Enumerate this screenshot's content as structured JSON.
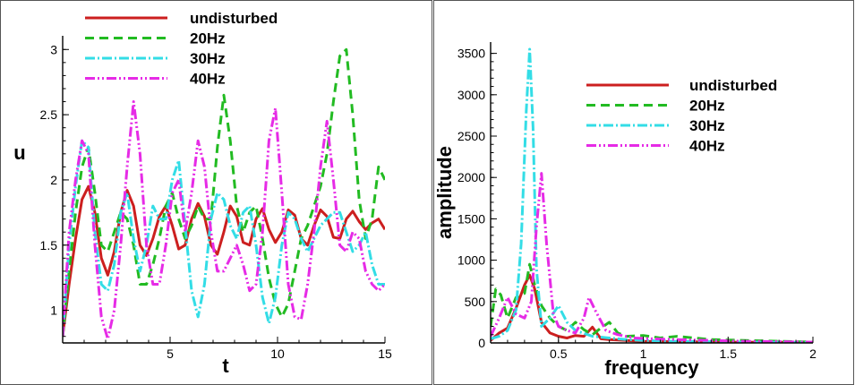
{
  "chart_data": [
    {
      "type": "line",
      "xlabel": "t",
      "ylabel": "u",
      "xlim": [
        0,
        15
      ],
      "ylim": [
        0.75,
        3.05
      ],
      "xticks": [
        5,
        10,
        15
      ],
      "yticks": [
        1,
        1.5,
        2,
        2.5,
        3
      ],
      "xtick_labels": [
        "5",
        "10",
        "15"
      ],
      "ytick_labels": [
        "1",
        "1.5",
        "2",
        "2.5",
        "3"
      ],
      "grid": false,
      "legend_position": "top-left",
      "series": [
        {
          "name": "undisturbed",
          "color": "#cc1f1f",
          "dash": "solid",
          "x": [
            0,
            0.3,
            0.6,
            0.9,
            1.2,
            1.5,
            1.8,
            2.1,
            2.4,
            2.7,
            3.0,
            3.3,
            3.6,
            3.9,
            4.2,
            4.5,
            4.8,
            5.1,
            5.4,
            5.7,
            6.0,
            6.3,
            6.6,
            6.9,
            7.2,
            7.5,
            7.8,
            8.1,
            8.4,
            8.7,
            9.0,
            9.3,
            9.6,
            9.9,
            10.2,
            10.5,
            10.8,
            11.1,
            11.4,
            11.7,
            12.0,
            12.3,
            12.6,
            12.9,
            13.2,
            13.5,
            13.8,
            14.1,
            14.4,
            14.7,
            15.0
          ],
          "y": [
            0.8,
            1.2,
            1.55,
            1.85,
            1.95,
            1.75,
            1.4,
            1.27,
            1.45,
            1.75,
            1.92,
            1.8,
            1.5,
            1.42,
            1.55,
            1.72,
            1.8,
            1.65,
            1.47,
            1.5,
            1.7,
            1.82,
            1.72,
            1.5,
            1.43,
            1.6,
            1.8,
            1.72,
            1.52,
            1.5,
            1.7,
            1.78,
            1.62,
            1.52,
            1.6,
            1.77,
            1.73,
            1.55,
            1.5,
            1.65,
            1.77,
            1.72,
            1.56,
            1.55,
            1.7,
            1.76,
            1.68,
            1.62,
            1.67,
            1.7,
            1.62
          ]
        },
        {
          "name": "20Hz",
          "color": "#22bb22",
          "dash": "10,6",
          "x": [
            0,
            0.3,
            0.6,
            0.9,
            1.2,
            1.5,
            1.8,
            2.1,
            2.4,
            2.7,
            3.0,
            3.3,
            3.6,
            3.9,
            4.2,
            4.5,
            4.8,
            5.1,
            5.4,
            5.7,
            6.0,
            6.3,
            6.6,
            6.9,
            7.2,
            7.5,
            7.8,
            8.1,
            8.4,
            8.7,
            9.0,
            9.3,
            9.6,
            9.9,
            10.2,
            10.5,
            10.8,
            11.1,
            11.4,
            11.7,
            12.0,
            12.3,
            12.6,
            12.9,
            13.2,
            13.5,
            13.8,
            14.1,
            14.4,
            14.7,
            15.0
          ],
          "y": [
            0.8,
            1.3,
            1.75,
            2.1,
            2.25,
            1.9,
            1.5,
            1.45,
            1.6,
            1.75,
            1.7,
            1.5,
            1.2,
            1.2,
            1.35,
            1.55,
            1.8,
            1.9,
            1.7,
            1.55,
            1.65,
            1.8,
            1.7,
            1.7,
            2.25,
            2.65,
            2.3,
            1.8,
            1.6,
            1.75,
            1.8,
            1.55,
            1.25,
            1.05,
            0.95,
            1.05,
            1.3,
            1.55,
            1.65,
            1.8,
            1.95,
            2.2,
            2.6,
            2.95,
            3.0,
            2.5,
            1.85,
            1.55,
            1.7,
            2.1,
            2.0
          ]
        },
        {
          "name": "30Hz",
          "color": "#33dde6",
          "dash": "11,3,2,3",
          "x": [
            0,
            0.3,
            0.6,
            0.9,
            1.2,
            1.5,
            1.8,
            2.1,
            2.4,
            2.7,
            3.0,
            3.3,
            3.6,
            3.9,
            4.2,
            4.5,
            4.8,
            5.1,
            5.4,
            5.7,
            6.0,
            6.3,
            6.6,
            6.9,
            7.2,
            7.5,
            7.8,
            8.1,
            8.4,
            8.7,
            9.0,
            9.3,
            9.6,
            9.9,
            10.2,
            10.5,
            10.8,
            11.1,
            11.4,
            11.7,
            12.0,
            12.3,
            12.6,
            12.9,
            13.2,
            13.5,
            13.8,
            14.1,
            14.4,
            14.7,
            15.0
          ],
          "y": [
            0.8,
            1.5,
            1.95,
            2.3,
            2.25,
            1.6,
            1.2,
            1.15,
            1.35,
            1.75,
            1.9,
            1.55,
            1.3,
            1.5,
            1.8,
            1.7,
            1.7,
            2.0,
            2.15,
            1.65,
            1.15,
            0.95,
            1.2,
            1.7,
            1.9,
            1.85,
            1.65,
            1.55,
            1.75,
            1.8,
            1.5,
            1.1,
            0.9,
            1.1,
            1.5,
            1.75,
            1.7,
            1.55,
            1.45,
            1.55,
            1.65,
            1.7,
            1.75,
            1.75,
            1.6,
            1.45,
            1.5,
            1.6,
            1.35,
            1.2,
            1.2
          ]
        },
        {
          "name": "40Hz",
          "color": "#e62be6",
          "dash": "11,3,2,3,2,3",
          "x": [
            0,
            0.3,
            0.6,
            0.9,
            1.2,
            1.5,
            1.8,
            2.1,
            2.4,
            2.7,
            3.0,
            3.3,
            3.6,
            3.9,
            4.2,
            4.5,
            4.8,
            5.1,
            5.4,
            5.7,
            6.0,
            6.3,
            6.6,
            6.9,
            7.2,
            7.5,
            7.8,
            8.1,
            8.4,
            8.7,
            9.0,
            9.3,
            9.6,
            9.9,
            10.2,
            10.5,
            10.8,
            11.1,
            11.4,
            11.7,
            12.0,
            12.3,
            12.6,
            12.9,
            13.2,
            13.5,
            13.8,
            14.1,
            14.4,
            14.7,
            15.0
          ],
          "y": [
            0.8,
            1.6,
            2.0,
            2.3,
            2.2,
            1.5,
            0.95,
            0.78,
            1.0,
            1.5,
            2.1,
            2.6,
            2.2,
            1.5,
            1.2,
            1.2,
            1.5,
            1.9,
            2.0,
            1.6,
            1.9,
            2.3,
            2.1,
            1.6,
            1.3,
            1.3,
            1.4,
            1.5,
            1.35,
            1.15,
            1.2,
            1.6,
            2.3,
            2.55,
            1.9,
            1.2,
            0.95,
            0.93,
            1.2,
            1.6,
            2.1,
            2.45,
            2.0,
            1.5,
            1.45,
            1.6,
            1.55,
            1.3,
            1.2,
            1.15,
            1.2
          ]
        }
      ]
    },
    {
      "type": "line",
      "xlabel": "frequency",
      "ylabel": "amplitude",
      "xlim": [
        0.1,
        2.0
      ],
      "ylim": [
        0,
        3550
      ],
      "xticks": [
        0.5,
        1,
        1.5,
        2
      ],
      "yticks": [
        0,
        500,
        1000,
        1500,
        2000,
        2500,
        3000,
        3500
      ],
      "xtick_labels": [
        "0.5",
        "1",
        "1.5",
        "2"
      ],
      "ytick_labels": [
        "0",
        "500",
        "1000",
        "1500",
        "2000",
        "2500",
        "3000",
        "3500"
      ],
      "grid": false,
      "legend_position": "top-right",
      "series": [
        {
          "name": "undisturbed",
          "color": "#cc1f1f",
          "dash": "solid",
          "x": [
            0.1,
            0.15,
            0.2,
            0.25,
            0.3,
            0.33,
            0.36,
            0.4,
            0.45,
            0.5,
            0.55,
            0.6,
            0.65,
            0.7,
            0.75,
            0.8,
            0.9,
            1.0,
            1.2,
            1.5,
            1.8,
            2.0
          ],
          "y": [
            30,
            120,
            180,
            420,
            700,
            820,
            650,
            250,
            120,
            80,
            60,
            90,
            80,
            190,
            50,
            40,
            30,
            20,
            15,
            10,
            8,
            5
          ]
        },
        {
          "name": "20Hz",
          "color": "#22bb22",
          "dash": "10,6",
          "x": [
            0.1,
            0.13,
            0.16,
            0.2,
            0.25,
            0.3,
            0.33,
            0.36,
            0.4,
            0.45,
            0.5,
            0.55,
            0.6,
            0.65,
            0.7,
            0.75,
            0.8,
            0.85,
            0.9,
            1.0,
            1.1,
            1.2,
            1.4,
            1.6,
            1.8,
            2.0
          ],
          "y": [
            200,
            650,
            580,
            300,
            550,
            600,
            950,
            700,
            450,
            300,
            200,
            150,
            250,
            160,
            100,
            180,
            250,
            120,
            80,
            90,
            60,
            80,
            40,
            30,
            20,
            10
          ]
        },
        {
          "name": "30Hz",
          "color": "#33dde6",
          "dash": "11,3,2,3",
          "x": [
            0.1,
            0.15,
            0.2,
            0.25,
            0.28,
            0.31,
            0.33,
            0.35,
            0.37,
            0.4,
            0.45,
            0.5,
            0.55,
            0.6,
            0.7,
            0.8,
            0.9,
            1.0,
            1.2,
            1.4,
            1.6,
            1.8,
            2.0
          ],
          "y": [
            50,
            80,
            150,
            400,
            1200,
            2800,
            3550,
            2600,
            900,
            200,
            300,
            450,
            250,
            150,
            80,
            60,
            40,
            30,
            20,
            15,
            10,
            8,
            5
          ]
        },
        {
          "name": "40Hz",
          "color": "#e62be6",
          "dash": "11,3,2,3,2,3",
          "x": [
            0.1,
            0.15,
            0.2,
            0.25,
            0.3,
            0.34,
            0.37,
            0.4,
            0.43,
            0.47,
            0.5,
            0.55,
            0.6,
            0.65,
            0.68,
            0.72,
            0.78,
            0.85,
            0.95,
            1.05,
            1.2,
            1.4,
            1.6,
            1.8,
            2.0
          ],
          "y": [
            80,
            300,
            550,
            350,
            300,
            500,
            1400,
            2050,
            1200,
            350,
            200,
            150,
            120,
            300,
            550,
            380,
            150,
            100,
            60,
            50,
            40,
            30,
            20,
            15,
            10
          ]
        }
      ]
    }
  ]
}
